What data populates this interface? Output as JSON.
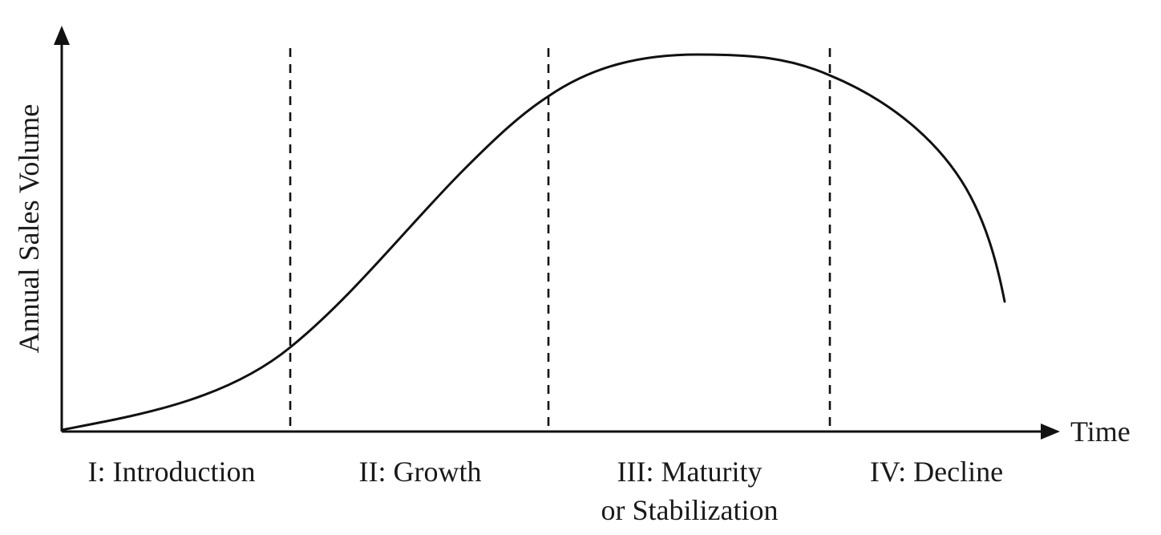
{
  "diagram": {
    "y_axis_label": "Annual Sales Volume",
    "x_axis_label": "Time",
    "stages": [
      {
        "label_line1": "I: Introduction",
        "label_line2": ""
      },
      {
        "label_line1": "II:  Growth",
        "label_line2": ""
      },
      {
        "label_line1": "III:  Maturity",
        "label_line2": "or Stabilization"
      },
      {
        "label_line1": "IV:  Decline",
        "label_line2": ""
      }
    ],
    "colors": {
      "line": "#111111",
      "text": "#1a1a1a",
      "background": "#ffffff"
    }
  }
}
